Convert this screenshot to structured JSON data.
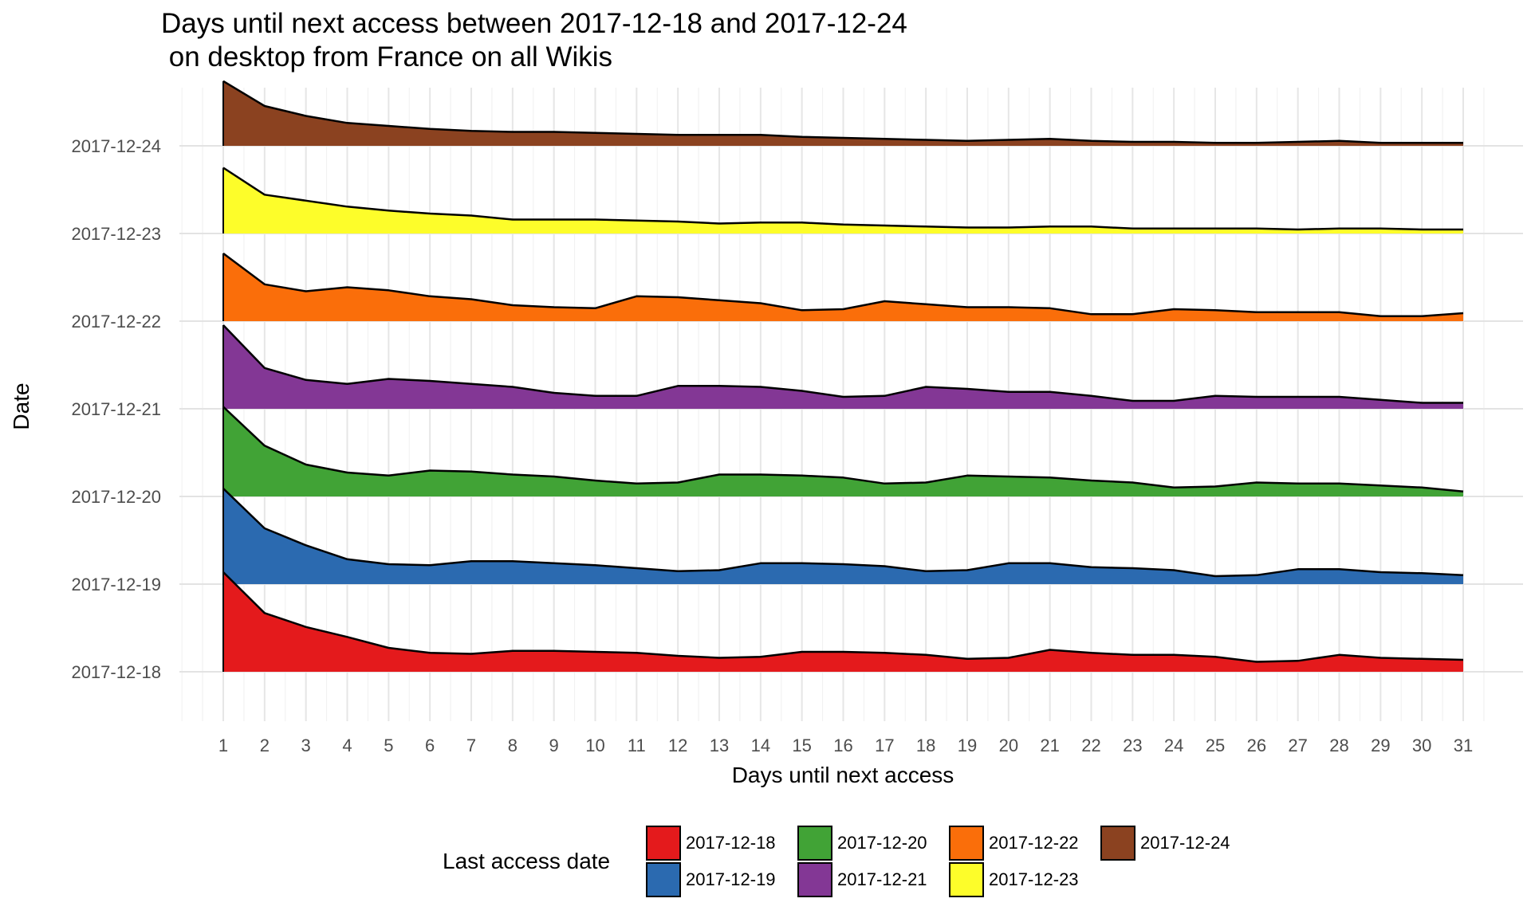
{
  "chart_data": {
    "type": "area",
    "title_lines": [
      "Days until next access between 2017-12-18 and 2017-12-24",
      " on desktop from France on all Wikis"
    ],
    "xlabel": "Days until next access",
    "ylabel": "Date",
    "x": [
      1,
      2,
      3,
      4,
      5,
      6,
      7,
      8,
      9,
      10,
      11,
      12,
      13,
      14,
      15,
      16,
      17,
      18,
      19,
      20,
      21,
      22,
      23,
      24,
      25,
      26,
      27,
      28,
      29,
      30,
      31
    ],
    "xlim": [
      0,
      32
    ],
    "categories": [
      "2017-12-18",
      "2017-12-19",
      "2017-12-20",
      "2017-12-21",
      "2017-12-22",
      "2017-12-23",
      "2017-12-24"
    ],
    "grid": true,
    "legend": {
      "title": "Last access date",
      "position": "bottom"
    },
    "series": [
      {
        "name": "2017-12-18",
        "color": "#e41a1c",
        "values": [
          1.0,
          0.59,
          0.45,
          0.35,
          0.24,
          0.19,
          0.18,
          0.21,
          0.21,
          0.2,
          0.19,
          0.16,
          0.14,
          0.15,
          0.2,
          0.2,
          0.19,
          0.17,
          0.13,
          0.14,
          0.22,
          0.19,
          0.17,
          0.17,
          0.15,
          0.1,
          0.11,
          0.17,
          0.14,
          0.13,
          0.12
        ]
      },
      {
        "name": "2017-12-19",
        "color": "#2b6ab0",
        "values": [
          0.96,
          0.56,
          0.39,
          0.25,
          0.2,
          0.19,
          0.23,
          0.23,
          0.21,
          0.19,
          0.16,
          0.13,
          0.14,
          0.21,
          0.21,
          0.2,
          0.18,
          0.13,
          0.14,
          0.21,
          0.21,
          0.17,
          0.16,
          0.14,
          0.08,
          0.09,
          0.15,
          0.15,
          0.12,
          0.11,
          0.09
        ]
      },
      {
        "name": "2017-12-20",
        "color": "#41a336",
        "values": [
          0.9,
          0.51,
          0.32,
          0.24,
          0.21,
          0.26,
          0.25,
          0.22,
          0.2,
          0.16,
          0.13,
          0.14,
          0.22,
          0.22,
          0.21,
          0.19,
          0.13,
          0.14,
          0.21,
          0.2,
          0.19,
          0.16,
          0.14,
          0.09,
          0.1,
          0.14,
          0.13,
          0.13,
          0.11,
          0.09,
          0.05
        ]
      },
      {
        "name": "2017-12-21",
        "color": "#833795",
        "values": [
          0.84,
          0.41,
          0.29,
          0.25,
          0.3,
          0.28,
          0.25,
          0.22,
          0.16,
          0.13,
          0.13,
          0.23,
          0.23,
          0.22,
          0.18,
          0.12,
          0.13,
          0.22,
          0.2,
          0.17,
          0.17,
          0.13,
          0.08,
          0.08,
          0.13,
          0.12,
          0.12,
          0.12,
          0.09,
          0.06,
          0.06
        ]
      },
      {
        "name": "2017-12-22",
        "color": "#fa6e0a",
        "values": [
          0.68,
          0.37,
          0.3,
          0.34,
          0.31,
          0.25,
          0.22,
          0.16,
          0.14,
          0.13,
          0.25,
          0.24,
          0.21,
          0.18,
          0.11,
          0.12,
          0.2,
          0.17,
          0.14,
          0.14,
          0.13,
          0.07,
          0.07,
          0.12,
          0.11,
          0.09,
          0.09,
          0.09,
          0.05,
          0.05,
          0.08
        ]
      },
      {
        "name": "2017-12-23",
        "color": "#fdfd2a",
        "values": [
          0.66,
          0.39,
          0.33,
          0.27,
          0.23,
          0.2,
          0.18,
          0.14,
          0.14,
          0.14,
          0.13,
          0.12,
          0.1,
          0.11,
          0.11,
          0.09,
          0.08,
          0.07,
          0.06,
          0.06,
          0.07,
          0.07,
          0.05,
          0.05,
          0.05,
          0.05,
          0.04,
          0.05,
          0.05,
          0.04,
          0.04
        ]
      },
      {
        "name": "2017-12-24",
        "color": "#8b4220",
        "values": [
          0.65,
          0.4,
          0.3,
          0.23,
          0.2,
          0.17,
          0.15,
          0.14,
          0.14,
          0.13,
          0.12,
          0.11,
          0.11,
          0.11,
          0.09,
          0.08,
          0.07,
          0.06,
          0.05,
          0.06,
          0.07,
          0.05,
          0.04,
          0.04,
          0.03,
          0.03,
          0.04,
          0.05,
          0.03,
          0.03,
          0.03
        ]
      }
    ]
  }
}
